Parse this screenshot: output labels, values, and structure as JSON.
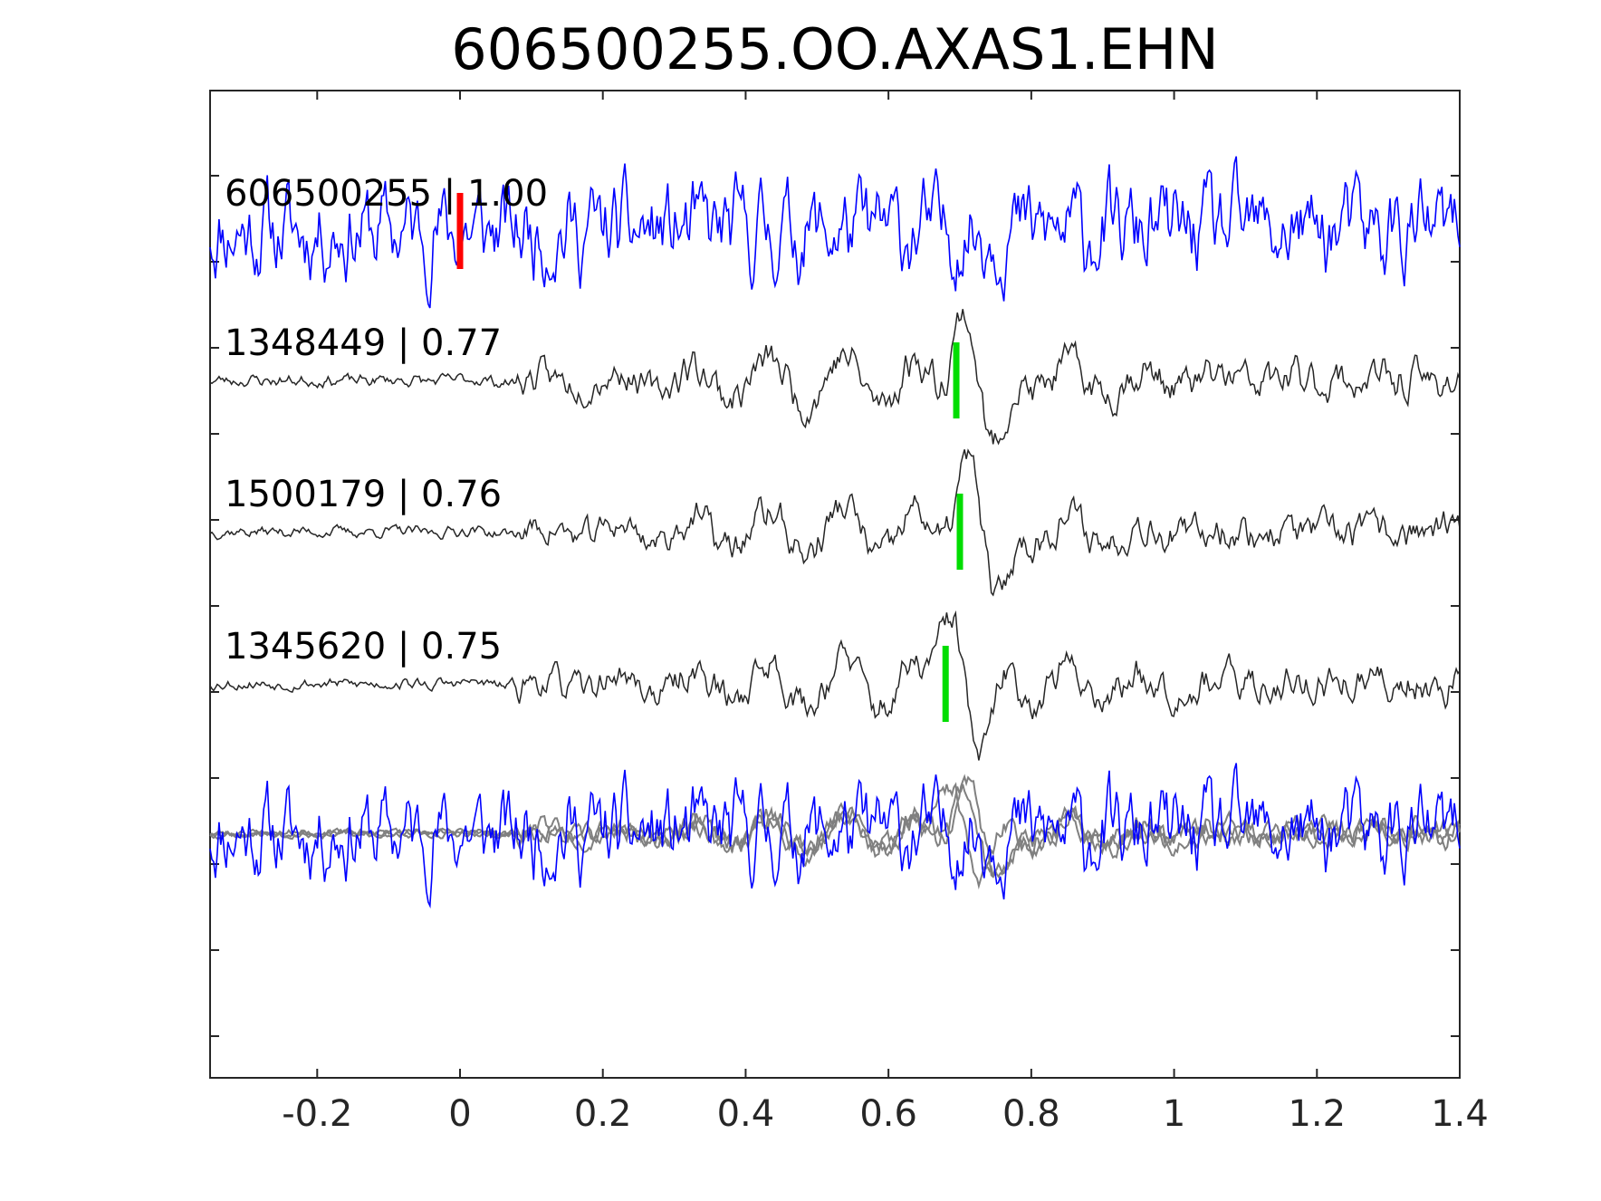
{
  "chart_data": {
    "type": "line",
    "title": "606500255.OO.AXAS1.EHN",
    "xlabel": "",
    "ylabel": "",
    "xlim": [
      -0.35,
      1.4
    ],
    "xticks": [
      -0.2,
      0,
      0.2,
      0.4,
      0.6,
      0.8,
      1,
      1.2,
      1.4
    ],
    "xtick_labels": [
      "-0.2",
      "0",
      "0.2",
      "0.4",
      "0.6",
      "0.8",
      "1",
      "1.2",
      "1.4"
    ],
    "y_tick_count": 11,
    "y_tick_labels_shown": false,
    "grid": false,
    "traces": [
      {
        "name": "606500255",
        "label": "606500255 | 1.00",
        "correlation": 1.0,
        "color": "#0000ff",
        "pick_time": 0.0,
        "pick_color": "#ff0000",
        "kind": "noise",
        "seed": 11
      },
      {
        "name": "1348449",
        "label": "1348449 | 0.77",
        "correlation": 0.77,
        "color": "#262626",
        "pick_time": 0.695,
        "pick_color": "#00dd00",
        "kind": "event",
        "seed": 23
      },
      {
        "name": "1500179",
        "label": "1500179 | 0.76",
        "correlation": 0.76,
        "color": "#262626",
        "pick_time": 0.7,
        "pick_color": "#00dd00",
        "kind": "event",
        "seed": 37
      },
      {
        "name": "1345620",
        "label": "1345620 | 0.75",
        "correlation": 0.75,
        "color": "#262626",
        "pick_time": 0.68,
        "pick_color": "#00dd00",
        "kind": "event",
        "seed": 53
      }
    ],
    "overlay": {
      "description_colors": {
        "master": "#0000ff",
        "templates": "#808080"
      }
    }
  }
}
